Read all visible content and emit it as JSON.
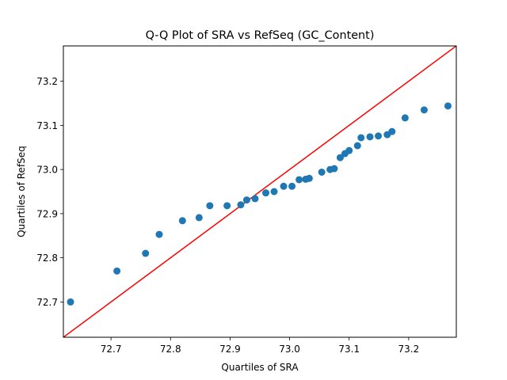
{
  "chart_data": {
    "type": "scatter",
    "title": "Q-Q Plot of SRA vs RefSeq (GC_Content)",
    "xlabel": "Quartiles of SRA",
    "ylabel": "Quartiles of RefSeq",
    "xlim": [
      72.62,
      73.28
    ],
    "ylim": [
      72.62,
      73.28
    ],
    "xticks": [
      72.7,
      72.8,
      72.9,
      73.0,
      73.1,
      73.2
    ],
    "yticks": [
      72.7,
      72.8,
      72.9,
      73.0,
      73.1,
      73.2
    ],
    "grid": false,
    "point_color": "#1f77b4",
    "line_color": "#ff0000",
    "reference_line": "y = x",
    "points": [
      [
        72.632,
        72.7
      ],
      [
        72.71,
        72.77
      ],
      [
        72.758,
        72.81
      ],
      [
        72.781,
        72.853
      ],
      [
        72.82,
        72.884
      ],
      [
        72.848,
        72.891
      ],
      [
        72.866,
        72.918
      ],
      [
        72.895,
        72.918
      ],
      [
        72.918,
        72.92
      ],
      [
        72.928,
        72.931
      ],
      [
        72.942,
        72.934
      ],
      [
        72.96,
        72.947
      ],
      [
        72.974,
        72.95
      ],
      [
        72.99,
        72.962
      ],
      [
        73.004,
        72.962
      ],
      [
        73.016,
        72.977
      ],
      [
        73.027,
        72.978
      ],
      [
        73.033,
        72.98
      ],
      [
        73.054,
        72.994
      ],
      [
        73.068,
        73.0
      ],
      [
        73.075,
        73.002
      ],
      [
        73.085,
        73.027
      ],
      [
        73.093,
        73.036
      ],
      [
        73.1,
        73.043
      ],
      [
        73.114,
        73.054
      ],
      [
        73.12,
        73.072
      ],
      [
        73.135,
        73.074
      ],
      [
        73.149,
        73.076
      ],
      [
        73.164,
        73.079
      ],
      [
        73.172,
        73.086
      ],
      [
        73.194,
        73.117
      ],
      [
        73.226,
        73.135
      ],
      [
        73.266,
        73.144
      ]
    ]
  }
}
